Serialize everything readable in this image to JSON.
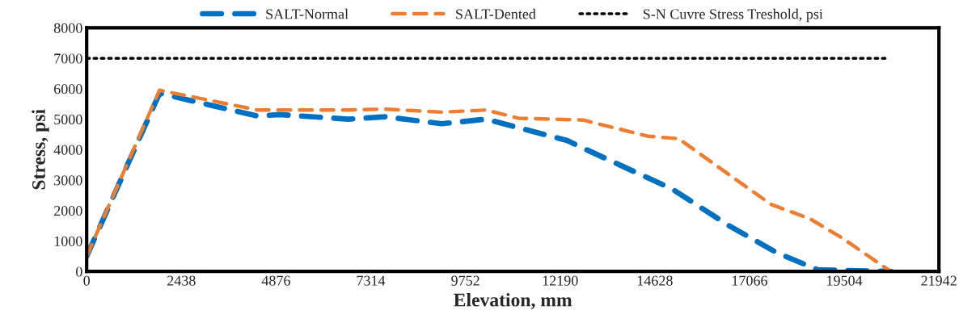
{
  "chart_data": {
    "type": "line",
    "xlabel": "Elevation, mm",
    "ylabel": "Stress, psi",
    "xlim": [
      0,
      21942
    ],
    "xticks": [
      0,
      2438,
      4876,
      7314,
      9752,
      12190,
      14628,
      17066,
      19504,
      21942
    ],
    "ylim": [
      0,
      8000
    ],
    "yticks": [
      0,
      1000,
      2000,
      3000,
      4000,
      5000,
      6000,
      7000,
      8000
    ],
    "grid": false,
    "legend": "top",
    "marker": "none",
    "series": [
      {
        "name": "SALT-Normal",
        "color": "#0070c0",
        "line_style": "dashed",
        "x": [
          0,
          1877,
          4400,
          4960,
          6740,
          7680,
          9140,
          10280,
          12370,
          12780,
          15080,
          16540,
          17790,
          18830,
          20700
        ],
        "values": [
          500,
          5850,
          5100,
          5150,
          5000,
          5080,
          4850,
          5000,
          4300,
          4050,
          2700,
          1500,
          600,
          50,
          0
        ]
      },
      {
        "name": "SALT-Dented",
        "color": "#ed7d31",
        "line_style": "dashed",
        "x": [
          0,
          1877,
          4400,
          6740,
          7680,
          9140,
          10280,
          11120,
          12780,
          14450,
          15240,
          17066,
          17620,
          18620,
          19460,
          20700
        ],
        "values": [
          500,
          5950,
          5300,
          5300,
          5330,
          5230,
          5300,
          5030,
          4970,
          4440,
          4360,
          2700,
          2200,
          1730,
          1090,
          0
        ]
      },
      {
        "name": "S-N Cuvre Stress Treshold, psi",
        "color": "#000000",
        "line_style": "dotted",
        "x": [
          0,
          20600
        ],
        "values": [
          7000,
          7000
        ]
      }
    ]
  }
}
